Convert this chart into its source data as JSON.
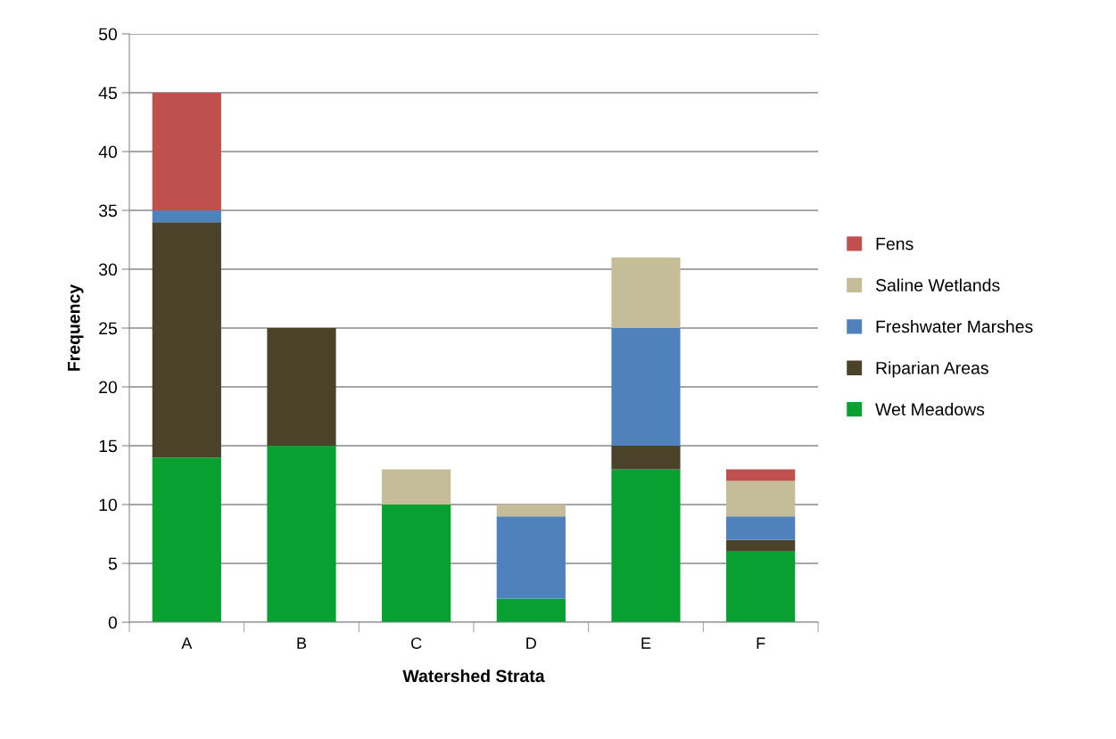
{
  "chart_data": {
    "type": "bar",
    "stacked": true,
    "xlabel": "Watershed Strata",
    "ylabel": "Frequency",
    "categories": [
      "A",
      "B",
      "C",
      "D",
      "E",
      "F"
    ],
    "series": [
      {
        "name": "Wet Meadows",
        "color": "#09a032",
        "values": [
          14,
          15,
          10,
          2,
          13,
          6
        ]
      },
      {
        "name": "Riparian Areas",
        "color": "#4a432a",
        "values": [
          20,
          10,
          0,
          0,
          2,
          1
        ]
      },
      {
        "name": "Freshwater Marshes",
        "color": "#4f81bd",
        "values": [
          1,
          0,
          0,
          7,
          10,
          2
        ]
      },
      {
        "name": "Saline Wetlands",
        "color": "#c4bd97",
        "values": [
          0,
          0,
          3,
          1,
          6,
          3
        ]
      },
      {
        "name": "Fens",
        "color": "#c0504d",
        "values": [
          10,
          0,
          0,
          0,
          0,
          1
        ]
      }
    ],
    "ylim": [
      0,
      50
    ],
    "yticks": [
      0,
      5,
      10,
      15,
      20,
      25,
      30,
      35,
      40,
      45,
      50
    ],
    "grid": "y",
    "legend": "right"
  }
}
